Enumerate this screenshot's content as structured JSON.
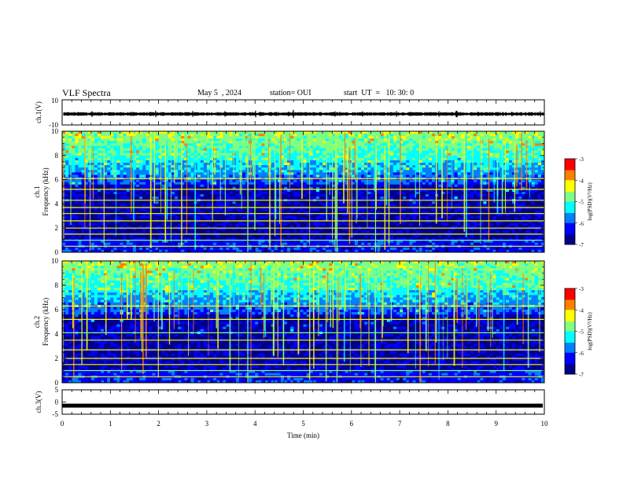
{
  "header": {
    "title": "VLF Spectra",
    "date": "May 5  , 2024",
    "station": "station= OUI",
    "start": "start  UT  =   10: 30: 0"
  },
  "chart_data": [
    {
      "type": "line",
      "title": "",
      "ylabel": "ch.1(V)",
      "ylim": [
        -10,
        10
      ],
      "yticks": [
        "10",
        "-10"
      ],
      "xlim": [
        0,
        10
      ],
      "description_values": {
        "baseline": 0,
        "amplitude_approx": 2
      }
    },
    {
      "type": "heatmap",
      "ylabel": "ch.1\nFrequency (kHz)",
      "ylabel_lines": [
        "ch.1",
        "Frequency  (kHz)"
      ],
      "yticks": [
        "0",
        "2",
        "4",
        "6",
        "8",
        "10"
      ],
      "ylim": [
        0,
        10
      ],
      "xlim": [
        0,
        10
      ],
      "colorbar": {
        "label": "log(PSD)(V²/Hz)",
        "ticks": [
          "-3",
          "-4",
          "-5",
          "-6",
          "-7"
        ],
        "range": [
          -7,
          -3
        ]
      },
      "persistent_lines_khz": [
        0.5,
        1.0,
        1.5,
        2.0,
        2.6,
        3.2,
        3.7,
        4.3,
        5.2,
        6.1
      ],
      "event_times_min": [
        3.85,
        5.7,
        6.5
      ]
    },
    {
      "type": "heatmap",
      "ylabel": "ch.2\nFrequency (kHz)",
      "ylabel_lines": [
        "ch.2",
        "Frequency  (kHz)"
      ],
      "yticks": [
        "0",
        "2",
        "4",
        "6",
        "8",
        "10"
      ],
      "ylim": [
        0,
        10
      ],
      "xlim": [
        0,
        10
      ],
      "colorbar": {
        "label": "log(PSD)(V²/Hz)",
        "ticks": [
          "-3",
          "-4",
          "-5",
          "-6",
          "-7"
        ],
        "range": [
          -7,
          -3
        ]
      },
      "persistent_lines_khz": [
        0.5,
        1.0,
        1.5,
        2.0,
        2.7,
        3.5,
        4.1,
        5.2,
        6.3
      ],
      "event_times_min": [
        3.85,
        5.7,
        6.5
      ]
    },
    {
      "type": "line",
      "ylabel": "ch.3(V)",
      "ylim": [
        -5,
        5
      ],
      "yticks": [
        "5",
        "0",
        "-5"
      ],
      "xlim": [
        0,
        10
      ],
      "series": [
        {
          "values": [
            -1.5,
            -1.5
          ]
        }
      ],
      "xlabel": "Time  (min)",
      "xticks": [
        "0",
        "1",
        "2",
        "3",
        "4",
        "5",
        "6",
        "7",
        "8",
        "9",
        "10"
      ]
    }
  ],
  "colors": {
    "colormap": [
      "#00008b",
      "#0000ff",
      "#0080ff",
      "#00ffff",
      "#80ff80",
      "#ffff00",
      "#ff8000",
      "#ff0000",
      "#ffffff"
    ]
  }
}
